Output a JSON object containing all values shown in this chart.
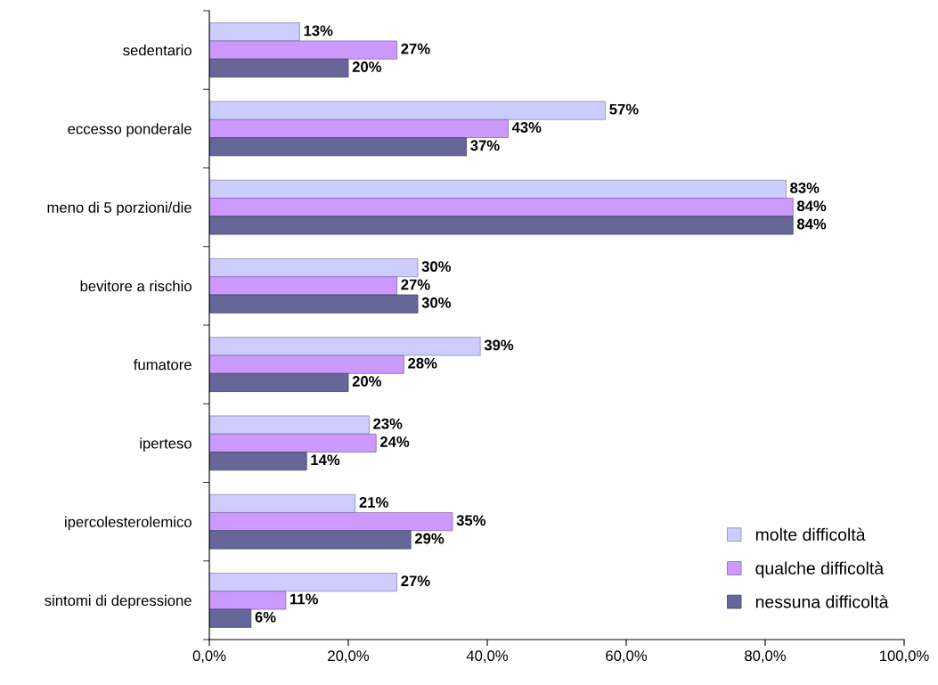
{
  "chart_data": {
    "type": "bar",
    "orientation": "horizontal",
    "categories": [
      "sedentario",
      "eccesso ponderale",
      "meno di 5 porzioni/die",
      "bevitore a rischio",
      "fumatore",
      "iperteso",
      "ipercolesterolemico",
      "sintomi di depressione"
    ],
    "series": [
      {
        "name": "molte difficoltà",
        "color": "#ccccff",
        "values": [
          13,
          57,
          83,
          30,
          39,
          23,
          21,
          27
        ],
        "value_labels": [
          "13%",
          "57%",
          "83%",
          "30%",
          "39%",
          "23%",
          "21%",
          "27%"
        ]
      },
      {
        "name": "qualche difficoltà",
        "color": "#cc99ff",
        "values": [
          27,
          43,
          84,
          27,
          28,
          24,
          35,
          11
        ],
        "value_labels": [
          "27%",
          "43%",
          "84%",
          "27%",
          "28%",
          "24%",
          "35%",
          "11%"
        ]
      },
      {
        "name": "nessuna difficoltà",
        "color": "#666699",
        "values": [
          20,
          37,
          84,
          30,
          20,
          14,
          29,
          6
        ],
        "value_labels": [
          "20%",
          "37%",
          "84%",
          "30%",
          "20%",
          "14%",
          "29%",
          "6%"
        ]
      }
    ],
    "xlim": [
      0,
      100
    ],
    "xticks": [
      {
        "value": 0,
        "label": "0,0%"
      },
      {
        "value": 20,
        "label": "20,0%"
      },
      {
        "value": 40,
        "label": "40,0%"
      },
      {
        "value": 60,
        "label": "60,0%"
      },
      {
        "value": 80,
        "label": "80,0%"
      },
      {
        "value": 100,
        "label": "100,0%"
      }
    ],
    "grid": false,
    "legend": "bottom right"
  }
}
